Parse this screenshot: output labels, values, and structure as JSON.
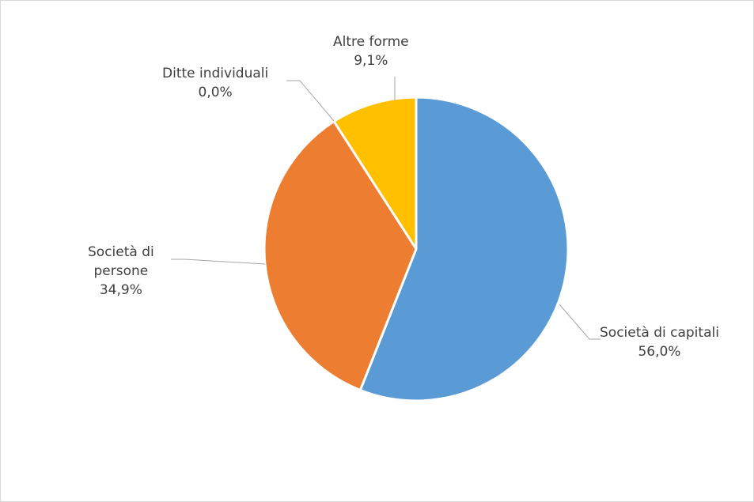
{
  "chart_data": {
    "type": "pie",
    "title": "",
    "slices": [
      {
        "label": "Società di capitali",
        "value": 56.0,
        "display": "56,0%",
        "color": "#5b9bd5"
      },
      {
        "label": "Società di persone",
        "value": 34.9,
        "display": "34,9%",
        "color": "#ed7d31"
      },
      {
        "label": "Ditte individuali",
        "value": 0.0,
        "display": "0,0%",
        "color": "#a5a5a5"
      },
      {
        "label": "Altre forme",
        "value": 9.1,
        "display": "9,1%",
        "color": "#ffc000"
      }
    ],
    "label_lines": {
      "capitali": [
        "Società di capitali",
        "56,0%"
      ],
      "persone": [
        "Società di",
        "persone",
        "34,9%"
      ],
      "ditte": [
        "Ditte individuali",
        "0,0%"
      ],
      "altre": [
        "Altre forme",
        "9,1%"
      ]
    },
    "start_angle": "12 o'clock",
    "direction": "clockwise",
    "legend": "none",
    "leader_line_color": "#a6a6a6",
    "slice_border_color": "#ffffff"
  }
}
